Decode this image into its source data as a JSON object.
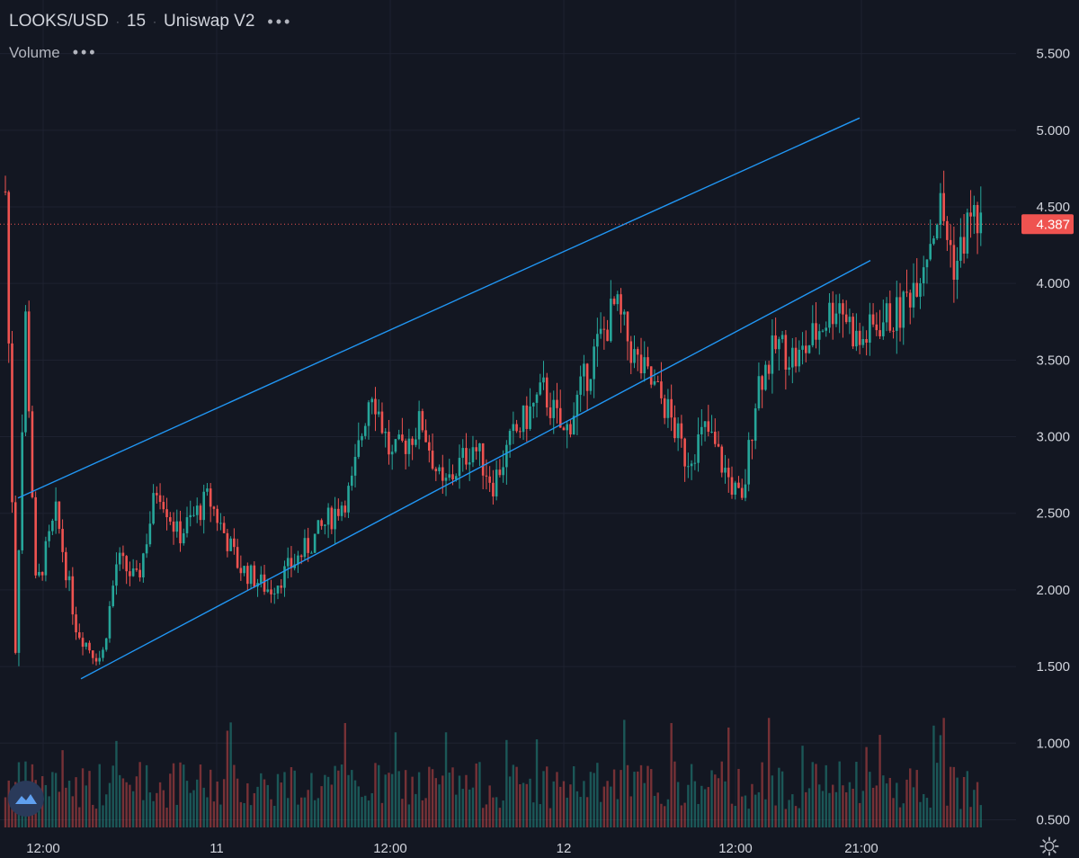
{
  "legend": {
    "symbol": "LOOKS/USD",
    "interval": "15",
    "exchange": "Uniswap V2",
    "more": "•••",
    "volume_label": "Volume",
    "volume_more": "•••"
  },
  "colors": {
    "background": "#131722",
    "grid": "#1e2230",
    "up": "#26a69a",
    "down": "#ef5350",
    "trendline": "#2196f3",
    "last_price": "#ef5350",
    "text": "#d1d4dc"
  },
  "icons": {
    "logo": "tradingview-logo-icon",
    "settings": "gear-icon"
  },
  "chart_data": {
    "type": "candlestick",
    "title": "LOOKS/USD · 15 · Uniswap V2",
    "y_ticks": [
      "5.500",
      "5.000",
      "4.500",
      "4.000",
      "3.500",
      "3.000",
      "2.500",
      "2.000",
      "1.500",
      "1.000",
      "0.500"
    ],
    "x_ticks": [
      "12:00",
      "11",
      "12:00",
      "12",
      "12:00",
      "21:00"
    ],
    "ylim": [
      0.45,
      5.85
    ],
    "last_price": {
      "value": 4.387,
      "label": "4.387"
    },
    "price_path": [
      [
        0,
        4.6
      ],
      [
        0.01,
        1.6
      ],
      [
        0.02,
        3.8
      ],
      [
        0.03,
        2.0
      ],
      [
        0.05,
        2.5
      ],
      [
        0.07,
        1.75
      ],
      [
        0.085,
        1.6
      ],
      [
        0.095,
        1.55
      ],
      [
        0.11,
        2.2
      ],
      [
        0.13,
        2.05
      ],
      [
        0.15,
        2.7
      ],
      [
        0.17,
        2.35
      ],
      [
        0.2,
        2.6
      ],
      [
        0.23,
        2.15
      ],
      [
        0.26,
        2.0
      ],
      [
        0.3,
        2.3
      ],
      [
        0.34,
        2.65
      ],
      [
        0.36,
        3.35
      ],
      [
        0.38,
        2.85
      ],
      [
        0.41,
        3.1
      ],
      [
        0.43,
        2.65
      ],
      [
        0.46,
        2.95
      ],
      [
        0.48,
        2.7
      ],
      [
        0.5,
        3.0
      ],
      [
        0.53,
        3.3
      ],
      [
        0.55,
        3.0
      ],
      [
        0.58,
        3.55
      ],
      [
        0.6,
        3.85
      ],
      [
        0.62,
        3.5
      ],
      [
        0.65,
        3.2
      ],
      [
        0.67,
        2.85
      ],
      [
        0.69,
        3.05
      ],
      [
        0.71,
        2.75
      ],
      [
        0.725,
        2.55
      ],
      [
        0.74,
        3.35
      ],
      [
        0.76,
        3.6
      ],
      [
        0.78,
        3.5
      ],
      [
        0.8,
        3.7
      ],
      [
        0.82,
        3.9
      ],
      [
        0.84,
        3.6
      ],
      [
        0.86,
        3.75
      ],
      [
        0.88,
        3.8
      ],
      [
        0.9,
        4.1
      ],
      [
        0.92,
        4.5
      ],
      [
        0.935,
        4.1
      ],
      [
        0.95,
        4.45
      ],
      [
        0.96,
        4.387
      ]
    ],
    "volume_range": [
      0.1,
      1.0
    ],
    "trendlines": [
      {
        "name": "upper",
        "from": [
          0.02,
          2.6
        ],
        "to": [
          1.0,
          5.08
        ]
      },
      {
        "name": "lower",
        "from": [
          0.09,
          1.42
        ],
        "to": [
          1.0,
          4.15
        ]
      }
    ],
    "grid": true
  }
}
